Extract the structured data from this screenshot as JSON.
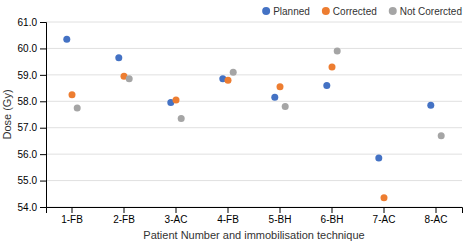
{
  "chart_data": {
    "type": "scatter",
    "categories": [
      "1-FB",
      "2-FB",
      "3-AC",
      "4-FB",
      "5-BH",
      "6-BH",
      "7-AC",
      "8-AC"
    ],
    "series": [
      {
        "name": "Planned",
        "color": "#4472C4",
        "values": [
          60.35,
          59.65,
          57.95,
          58.85,
          58.15,
          58.6,
          55.85,
          57.85
        ]
      },
      {
        "name": "Corrected",
        "color": "#ED7D31",
        "values": [
          58.25,
          58.95,
          58.05,
          58.8,
          58.55,
          59.3,
          54.35,
          null
        ]
      },
      {
        "name": "Not Corercted",
        "color": "#A5A5A5",
        "values": [
          57.75,
          58.85,
          57.35,
          59.1,
          57.8,
          59.9,
          null,
          56.7
        ]
      }
    ],
    "xlabel": "Patient Number and immobilisation technique",
    "ylabel": "Dose (Gy)",
    "ylim": [
      54.0,
      61.0
    ],
    "yticks": [
      {
        "value": 54.0,
        "label": "54.0"
      },
      {
        "value": 55.0,
        "label": "55.0"
      },
      {
        "value": 56.0,
        "label": "56.0"
      },
      {
        "value": 57.0,
        "label": "57.0"
      },
      {
        "value": 58.0,
        "label": "58.0"
      },
      {
        "value": 59.0,
        "label": "59.0"
      },
      {
        "value": 60.0,
        "label": "60.0"
      },
      {
        "value": 61.0,
        "label": "61.0"
      }
    ],
    "grid": true,
    "legend": "upper right"
  }
}
